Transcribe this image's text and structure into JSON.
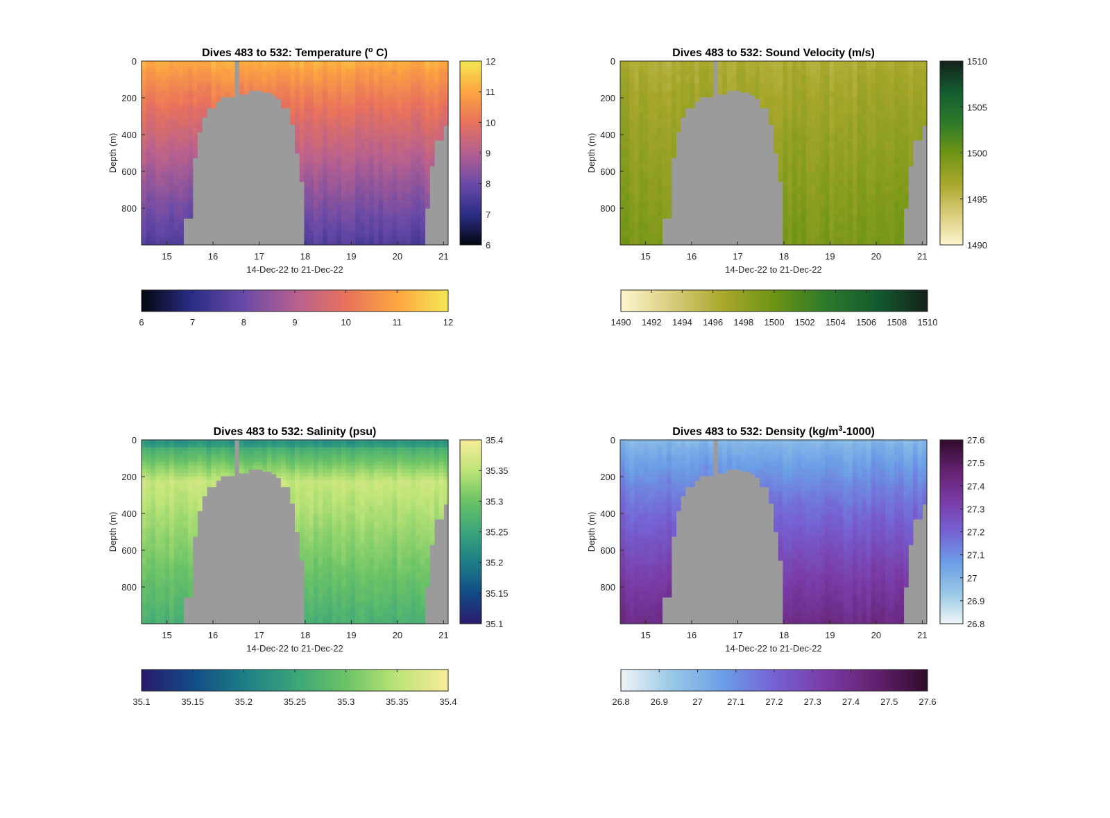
{
  "chart_data": [
    {
      "type": "heatmap",
      "title": "Dives 483 to 532: Temperature (",
      "title_unit": "o",
      "title_tail": " C)",
      "xlabel": "14-Dec-22 to 21-Dec-22",
      "ylabel": "Depth (m)",
      "xlim": [
        14.45,
        21.1
      ],
      "ylim": [
        0,
        1000
      ],
      "x_ticks": [
        15,
        16,
        17,
        18,
        19,
        20,
        21
      ],
      "y_ticks": [
        0,
        200,
        400,
        600,
        800
      ],
      "clim": [
        6,
        12
      ],
      "colormap": [
        "#04070f",
        "#2b2e87",
        "#6a4aa6",
        "#b56090",
        "#e8725c",
        "#fda540",
        "#f4e854"
      ],
      "side_ticks": [
        "6",
        "7",
        "8",
        "9",
        "10",
        "11",
        "12"
      ],
      "bottom_ticks": [
        "6",
        "7",
        "8",
        "9",
        "10",
        "11",
        "12"
      ],
      "surface_value": 11.2,
      "bottom_value": 7.6,
      "nodata_color": "#9b9b9b"
    },
    {
      "type": "heatmap",
      "title": "Dives 483 to 532: Sound Velocity (m/s)",
      "xlabel": "14-Dec-22 to 21-Dec-22",
      "ylabel": "Depth (m)",
      "xlim": [
        14.45,
        21.1
      ],
      "ylim": [
        0,
        1000
      ],
      "x_ticks": [
        15,
        16,
        17,
        18,
        19,
        20,
        21
      ],
      "y_ticks": [
        0,
        200,
        400,
        600,
        800
      ],
      "clim": [
        1490,
        1510
      ],
      "colormap": [
        "#fdf6cf",
        "#d9cc7a",
        "#a8a72c",
        "#6e9414",
        "#2d7a2a",
        "#135c30",
        "#15211a"
      ],
      "side_ticks": [
        "1490",
        "1495",
        "1500",
        "1505",
        "1510"
      ],
      "bottom_ticks": [
        "1490",
        "1492",
        "1494",
        "1496",
        "1498",
        "1500",
        "1502",
        "1504",
        "1506",
        "1508",
        "1510"
      ],
      "surface_value": 1496.2,
      "bottom_value": 1499.3,
      "nodata_color": "#9b9b9b"
    },
    {
      "type": "heatmap",
      "title": "Dives 483 to 532: Salinity (psu)",
      "xlabel": "14-Dec-22 to 21-Dec-22",
      "ylabel": "Depth (m)",
      "xlim": [
        14.45,
        21.1
      ],
      "ylim": [
        0,
        1000
      ],
      "x_ticks": [
        15,
        16,
        17,
        18,
        19,
        20,
        21
      ],
      "y_ticks": [
        0,
        200,
        400,
        600,
        800
      ],
      "clim": [
        35.1,
        35.4
      ],
      "colormap": [
        "#2a1a6b",
        "#124b86",
        "#1d7e87",
        "#3aa57a",
        "#6bc366",
        "#bde477",
        "#f7ec9a"
      ],
      "side_ticks": [
        "35.1",
        "35.15",
        "35.2",
        "35.25",
        "35.3",
        "35.35",
        "35.4"
      ],
      "bottom_ticks": [
        "35.1",
        "35.15",
        "35.2",
        "35.25",
        "35.3",
        "35.35",
        "35.4"
      ],
      "surface_value": 35.28,
      "mid_value": 35.36,
      "bottom_value": 35.27,
      "nodata_color": "#9b9b9b"
    },
    {
      "type": "heatmap",
      "title": "Dives 483 to 532: Density (kg/m",
      "title_unit": "3",
      "title_tail": "-1000)",
      "xlabel": "14-Dec-22 to 21-Dec-22",
      "ylabel": "Depth (m)",
      "xlim": [
        14.45,
        21.1
      ],
      "ylim": [
        0,
        1000
      ],
      "x_ticks": [
        15,
        16,
        17,
        18,
        19,
        20,
        21
      ],
      "y_ticks": [
        0,
        200,
        400,
        600,
        800
      ],
      "clim": [
        26.8,
        27.6
      ],
      "colormap": [
        "#eef4f6",
        "#98c8e6",
        "#6b9ee6",
        "#7562d4",
        "#7a3ba6",
        "#64216f",
        "#2e0b2a"
      ],
      "side_ticks": [
        "26.8",
        "26.9",
        "27",
        "27.1",
        "27.2",
        "27.3",
        "27.4",
        "27.5",
        "27.6"
      ],
      "bottom_ticks": [
        "26.8",
        "26.9",
        "27",
        "27.1",
        "27.2",
        "27.3",
        "27.4",
        "27.5",
        "27.6"
      ],
      "surface_value": 26.98,
      "bottom_value": 27.42,
      "nodata_color": "#9b9b9b"
    }
  ]
}
